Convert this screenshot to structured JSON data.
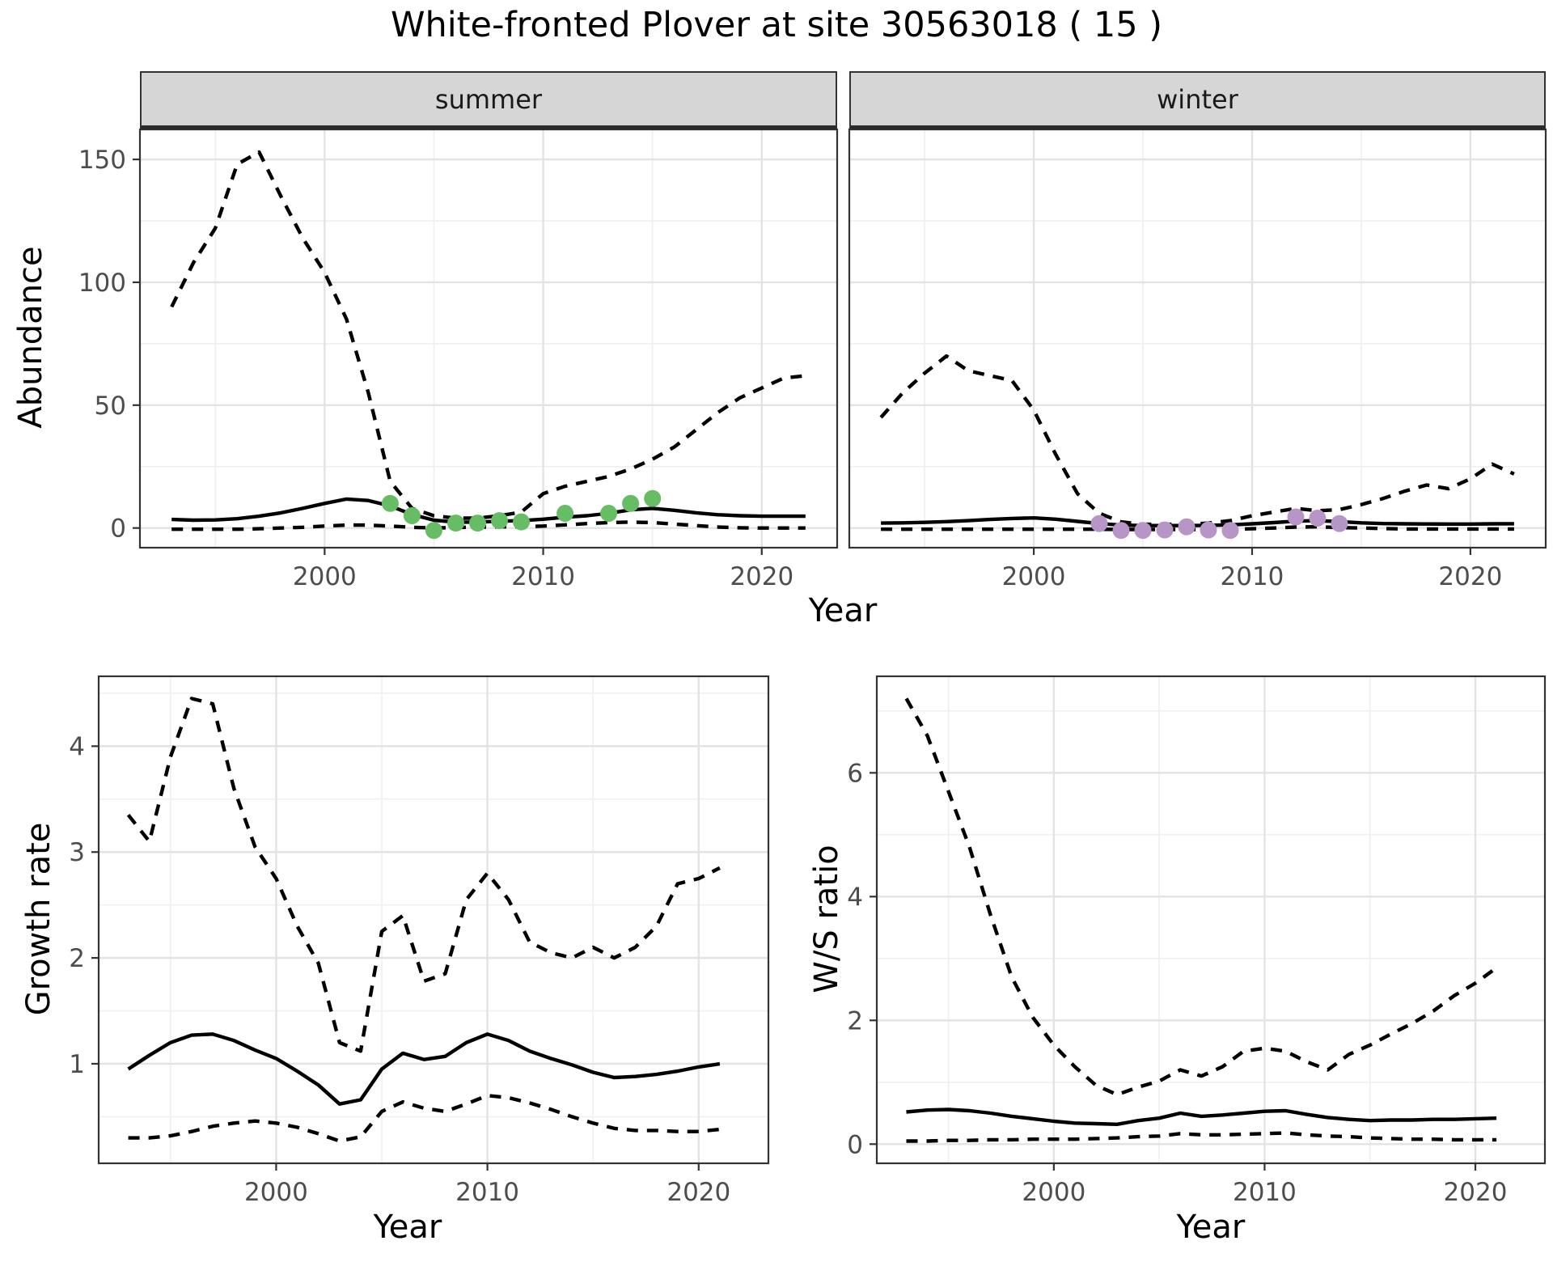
{
  "title": "White-fronted Plover at site 30563018 ( 15 )",
  "facets": {
    "summer": "summer",
    "winter": "winter"
  },
  "axis_labels": {
    "abundance": "Abundance",
    "growth": "Growth rate",
    "ws": "W/S ratio",
    "year_top": "Year",
    "year_growth": "Year",
    "year_ws": "Year"
  },
  "colors": {
    "summer_point": "#66bd63",
    "winter_point": "#b795c7",
    "line": "#000000",
    "grid_major": "#e3e3e3",
    "grid_minor": "#f0f0f0",
    "strip_bg": "#d6d6d6",
    "axis_text": "#4d4d4d",
    "panel_border": "#333333"
  },
  "chart_data": [
    {
      "id": "abundance_summer",
      "type": "line",
      "facet_label": "summer",
      "xlabel": "Year",
      "ylabel": "Abundance",
      "xlim": [
        1991.55,
        2023.45
      ],
      "ylim": [
        -8,
        162.2
      ],
      "x_ticks": [
        2000,
        2010,
        2020
      ],
      "x_minor_ticks": [
        1995,
        2005,
        2015
      ],
      "y_ticks": [
        0,
        50,
        100,
        150
      ],
      "y_minor_ticks": [
        25,
        75,
        125
      ],
      "years": [
        1993,
        1994,
        1995,
        1996,
        1997,
        1998,
        1999,
        2000,
        2001,
        2002,
        2003,
        2004,
        2005,
        2006,
        2007,
        2008,
        2009,
        2010,
        2011,
        2012,
        2013,
        2014,
        2015,
        2016,
        2017,
        2018,
        2019,
        2020,
        2021,
        2022
      ],
      "series": [
        {
          "name": "upper_95ci",
          "style": "dashed",
          "values": [
            90,
            108,
            122,
            148,
            153,
            135,
            118,
            104,
            85,
            55,
            19,
            8,
            5,
            4,
            4,
            5,
            6.5,
            14,
            17,
            19,
            21,
            24,
            28,
            33,
            40,
            47,
            53,
            57,
            61,
            62
          ]
        },
        {
          "name": "median",
          "style": "solid",
          "values": [
            3.5,
            3.2,
            3.3,
            3.8,
            4.8,
            6.2,
            8,
            10,
            11.8,
            11.2,
            9,
            5.5,
            3.2,
            2.4,
            2.4,
            2.8,
            3,
            3.6,
            4.4,
            5,
            6,
            7.4,
            8,
            7.2,
            6.2,
            5.4,
            5,
            4.8,
            4.8,
            4.8
          ]
        },
        {
          "name": "lower_95ci",
          "style": "dashed",
          "values": [
            -0.5,
            -0.5,
            -0.5,
            -0.5,
            -0.3,
            0,
            0.3,
            0.8,
            1.2,
            1.2,
            0.8,
            0.3,
            0,
            0.2,
            0.4,
            0.5,
            0.5,
            0.8,
            1.3,
            1.8,
            2.2,
            2.4,
            2.2,
            1.6,
            1,
            0.4,
            0.1,
            0,
            0,
            0
          ]
        }
      ],
      "points": {
        "name": "observed_counts_summer",
        "color_key": "summer_point",
        "x": [
          2003,
          2004,
          2005,
          2006,
          2007,
          2008,
          2009,
          2011,
          2013,
          2014,
          2015
        ],
        "values": [
          10,
          5,
          -1,
          2,
          2,
          3,
          2.5,
          6,
          6,
          10,
          12
        ]
      }
    },
    {
      "id": "abundance_winter",
      "type": "line",
      "facet_label": "winter",
      "xlabel": "Year",
      "ylabel": "Abundance",
      "xlim": [
        1991.55,
        2023.45
      ],
      "ylim": [
        -8,
        162.2
      ],
      "x_ticks": [
        2000,
        2010,
        2020
      ],
      "x_minor_ticks": [
        1995,
        2005,
        2015
      ],
      "y_ticks": [
        0,
        50,
        100,
        150
      ],
      "y_minor_ticks": [
        25,
        75,
        125
      ],
      "years": [
        1993,
        1994,
        1995,
        1996,
        1997,
        1998,
        1999,
        2000,
        2001,
        2002,
        2003,
        2004,
        2005,
        2006,
        2007,
        2008,
        2009,
        2010,
        2011,
        2012,
        2013,
        2014,
        2015,
        2016,
        2017,
        2018,
        2019,
        2020,
        2021,
        2022
      ],
      "series": [
        {
          "name": "upper_95ci",
          "style": "dashed",
          "values": [
            45,
            55,
            63,
            70,
            64,
            62,
            60,
            48,
            30,
            14,
            6,
            2.5,
            1.5,
            1.5,
            1.5,
            2,
            3,
            5,
            6.5,
            8,
            7,
            7.5,
            9.5,
            12,
            15,
            17.5,
            16,
            20,
            26,
            22
          ]
        },
        {
          "name": "median",
          "style": "solid",
          "values": [
            2,
            2.1,
            2.3,
            2.6,
            3,
            3.5,
            3.9,
            4.1,
            3.6,
            2.7,
            1.8,
            1.2,
            1,
            1,
            1,
            1.1,
            1.3,
            1.7,
            2.2,
            2.8,
            3,
            2.6,
            2.1,
            1.8,
            1.7,
            1.65,
            1.6,
            1.6,
            1.7,
            1.75
          ]
        },
        {
          "name": "lower_95ci",
          "style": "dashed",
          "values": [
            -0.5,
            -0.5,
            -0.5,
            -0.5,
            -0.5,
            -0.5,
            -0.5,
            -0.5,
            -0.5,
            -0.5,
            -0.5,
            -0.6,
            -0.6,
            -0.6,
            -0.6,
            -0.6,
            -0.5,
            -0.3,
            0,
            0.4,
            0.5,
            0.2,
            0,
            -0.2,
            -0.4,
            -0.4,
            -0.4,
            -0.4,
            -0.4,
            -0.4
          ]
        }
      ],
      "points": {
        "name": "observed_counts_winter",
        "color_key": "winter_point",
        "x": [
          2003,
          2004,
          2005,
          2006,
          2007,
          2008,
          2009,
          2012,
          2013,
          2014
        ],
        "values": [
          1.8,
          -1,
          -1,
          -0.8,
          0.5,
          -0.8,
          -1,
          4.5,
          4,
          1.8
        ]
      }
    },
    {
      "id": "growth_rate",
      "type": "line",
      "facet_label": "",
      "xlabel": "Year",
      "ylabel": "Growth rate",
      "xlim": [
        1991.6,
        2023.3
      ],
      "ylim": [
        0.06,
        4.66
      ],
      "x_ticks": [
        2000,
        2010,
        2020
      ],
      "x_minor_ticks": [
        1995,
        2005,
        2015
      ],
      "y_ticks": [
        1,
        2,
        3,
        4
      ],
      "y_minor_ticks": [
        0.5,
        1.5,
        2.5,
        3.5,
        4.5
      ],
      "years": [
        1993,
        1994,
        1995,
        1996,
        1997,
        1998,
        1999,
        2000,
        2001,
        2002,
        2003,
        2004,
        2005,
        2006,
        2007,
        2008,
        2009,
        2010,
        2011,
        2012,
        2013,
        2014,
        2015,
        2016,
        2017,
        2018,
        2019,
        2020,
        2021
      ],
      "series": [
        {
          "name": "upper_95ci",
          "style": "dashed",
          "values": [
            3.35,
            3.1,
            3.9,
            4.45,
            4.4,
            3.6,
            3.05,
            2.75,
            2.3,
            1.95,
            1.2,
            1.12,
            2.25,
            2.4,
            1.78,
            1.85,
            2.55,
            2.8,
            2.55,
            2.15,
            2.05,
            2.0,
            2.1,
            2.0,
            2.1,
            2.3,
            2.7,
            2.75,
            2.85
          ]
        },
        {
          "name": "median",
          "style": "solid",
          "values": [
            0.95,
            1.08,
            1.2,
            1.27,
            1.28,
            1.22,
            1.13,
            1.05,
            0.93,
            0.8,
            0.62,
            0.66,
            0.95,
            1.1,
            1.04,
            1.07,
            1.2,
            1.28,
            1.22,
            1.12,
            1.05,
            0.99,
            0.92,
            0.87,
            0.88,
            0.9,
            0.93,
            0.97,
            1.0
          ]
        },
        {
          "name": "lower_95ci",
          "style": "dashed",
          "values": [
            0.3,
            0.3,
            0.32,
            0.36,
            0.41,
            0.44,
            0.46,
            0.44,
            0.4,
            0.34,
            0.27,
            0.31,
            0.55,
            0.64,
            0.58,
            0.55,
            0.62,
            0.7,
            0.68,
            0.63,
            0.57,
            0.5,
            0.44,
            0.39,
            0.37,
            0.37,
            0.36,
            0.36,
            0.38
          ]
        }
      ]
    },
    {
      "id": "ws_ratio",
      "type": "line",
      "facet_label": "",
      "xlabel": "Year",
      "ylabel": "W/S ratio",
      "xlim": [
        1991.6,
        2023.3
      ],
      "ylim": [
        -0.31,
        7.56
      ],
      "x_ticks": [
        2000,
        2010,
        2020
      ],
      "x_minor_ticks": [
        1995,
        2005,
        2015
      ],
      "y_ticks": [
        0,
        2,
        4,
        6
      ],
      "y_minor_ticks": [
        1,
        3,
        5,
        7
      ],
      "years": [
        1993,
        1994,
        1995,
        1996,
        1997,
        1998,
        1999,
        2000,
        2001,
        2002,
        2003,
        2004,
        2005,
        2006,
        2007,
        2008,
        2009,
        2010,
        2011,
        2012,
        2013,
        2014,
        2015,
        2016,
        2017,
        2018,
        2019,
        2020,
        2021
      ],
      "series": [
        {
          "name": "upper_95ci",
          "style": "dashed",
          "values": [
            7.2,
            6.6,
            5.7,
            4.8,
            3.7,
            2.7,
            2.05,
            1.6,
            1.25,
            0.95,
            0.8,
            0.92,
            1.02,
            1.2,
            1.1,
            1.25,
            1.5,
            1.55,
            1.5,
            1.33,
            1.2,
            1.45,
            1.6,
            1.78,
            1.95,
            2.15,
            2.4,
            2.6,
            2.85
          ]
        },
        {
          "name": "median",
          "style": "solid",
          "values": [
            0.52,
            0.55,
            0.56,
            0.54,
            0.5,
            0.45,
            0.41,
            0.37,
            0.34,
            0.33,
            0.32,
            0.38,
            0.42,
            0.5,
            0.45,
            0.47,
            0.5,
            0.53,
            0.54,
            0.48,
            0.43,
            0.4,
            0.38,
            0.39,
            0.39,
            0.4,
            0.4,
            0.41,
            0.42
          ]
        },
        {
          "name": "lower_95ci",
          "style": "dashed",
          "values": [
            0.05,
            0.05,
            0.06,
            0.06,
            0.07,
            0.07,
            0.08,
            0.08,
            0.08,
            0.09,
            0.1,
            0.12,
            0.13,
            0.17,
            0.15,
            0.15,
            0.16,
            0.17,
            0.18,
            0.15,
            0.13,
            0.12,
            0.1,
            0.09,
            0.08,
            0.08,
            0.07,
            0.07,
            0.07
          ]
        }
      ]
    }
  ]
}
